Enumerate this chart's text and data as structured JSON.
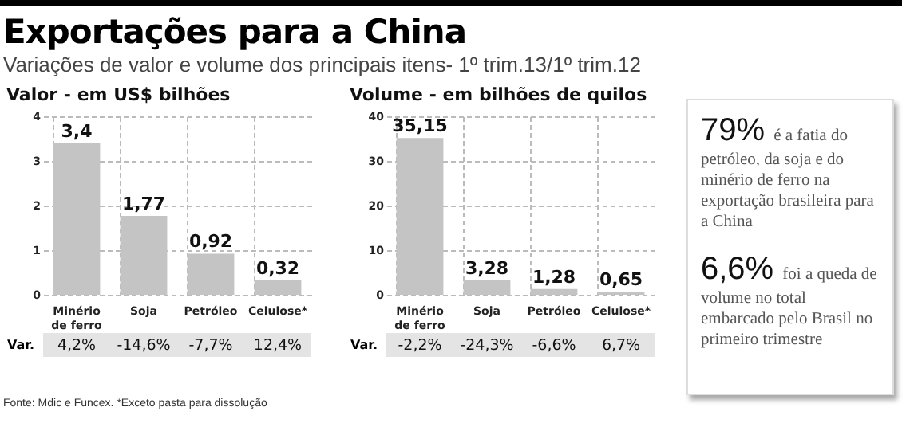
{
  "chart_data": [
    {
      "type": "bar",
      "title": "Exportações para a China",
      "subtitle": "Variações de valor e volume dos principais itens- 1º trim.13/1º trim.12",
      "ylabel": "Valor - em US$ bilhões",
      "categories": [
        "Minério de ferro",
        "Soja",
        "Petróleo",
        "Celulose*"
      ],
      "values": [
        3.4,
        1.77,
        0.92,
        0.32
      ],
      "value_labels": [
        "3,4",
        "1,77",
        "0,92",
        "0,32"
      ],
      "color": "#c4c4c4",
      "ylim": [
        0,
        4
      ],
      "yticks": [
        0,
        1,
        2,
        3,
        4
      ],
      "grid": true,
      "annotations": [
        "Var.",
        "4,2%",
        "-14,6%",
        "-7,7%",
        "12,4%",
        "Fonte: Mdic e Funcex. *Exceto pasta para dissolução"
      ]
    },
    {
      "type": "bar",
      "ylabel": "Volume - em bilhões de quilos",
      "categories": [
        "Minério de ferro",
        "Soja",
        "Petróleo",
        "Celulose*"
      ],
      "values": [
        35.15,
        3.28,
        1.28,
        0.65
      ],
      "value_labels": [
        "35,15",
        "3,28",
        "1,28",
        "0,65"
      ],
      "color": "#c4c4c4",
      "ylim": [
        0,
        40
      ],
      "yticks": [
        0,
        10,
        20,
        30,
        40
      ],
      "grid": true,
      "annotations": [
        "Var.",
        "-2,2%",
        "-24,3%",
        "-6,6%",
        "6,7%"
      ]
    },
    {
      "type": "other",
      "annotations": [
        "79% é a fatia do petróleo, da soja e do minério de ferro na exportação brasileira para a China",
        "6,6% foi a queda de volume no total embarcado pelo Brasil no primeiro trimestre"
      ]
    }
  ]
}
